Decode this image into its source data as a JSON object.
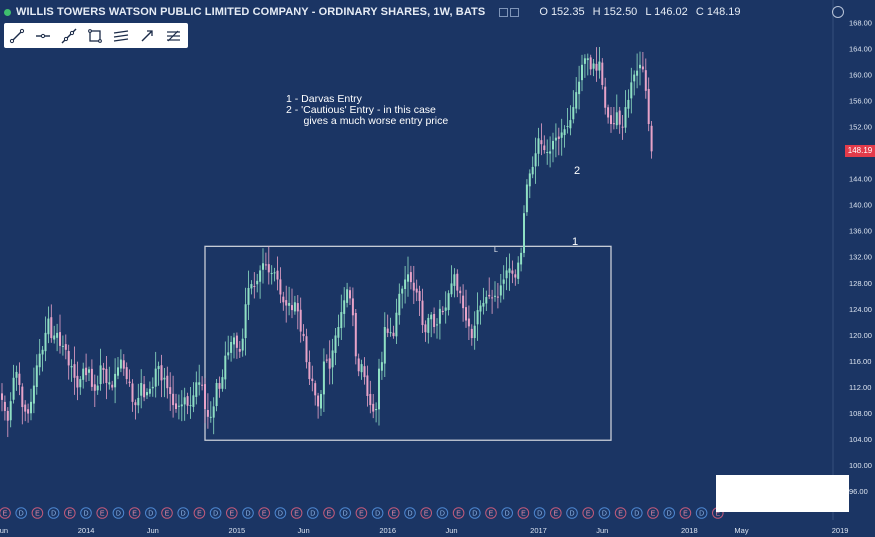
{
  "header": {
    "title": "WILLIS TOWERS WATSON PUBLIC LIMITED COMPANY - ORDINARY SHARES, 1W, BATS",
    "open": "O 152.35",
    "high": "H 152.50",
    "low": "L 146.02",
    "close": "C 148.19"
  },
  "toolbar": {
    "tools": [
      "trend-line-icon",
      "horizontal-ray-icon",
      "extended-line-icon",
      "rectangle-icon",
      "parallel-channel-icon",
      "arrow-line-icon",
      "fib-icon"
    ]
  },
  "annotation": {
    "line1": "1 - Darvas Entry",
    "line2": "2 - 'Cautious' Entry - in this case",
    "line3": "      gives a much worse entry price"
  },
  "markers": {
    "one": "1",
    "two": "2",
    "small": "L"
  },
  "colors": {
    "background": "#1b3564",
    "up": "#8fe0c4",
    "down": "#e8a3c8",
    "box": "#c9ced8",
    "last_price": "#e33b4a"
  },
  "chart_data": {
    "type": "candlestick",
    "title": "WILLIS TOWERS WATSON PUBLIC LIMITED COMPANY - ORDINARY SHARES, 1W, BATS",
    "ylim": [
      94,
      169
    ],
    "y_ticks": [
      "168.00",
      "164.00",
      "160.00",
      "156.00",
      "152.00",
      "148.00",
      "144.00",
      "140.00",
      "136.00",
      "132.00",
      "128.00",
      "124.00",
      "120.00",
      "116.00",
      "112.00",
      "108.00",
      "104.00",
      "100.00",
      "96.00"
    ],
    "last_price": "148.19",
    "x_labels": [
      {
        "label": "Jun",
        "t": 0
      },
      {
        "label": "2014",
        "t": 29
      },
      {
        "label": "Jun",
        "t": 52
      },
      {
        "label": "2015",
        "t": 81
      },
      {
        "label": "Jun",
        "t": 104
      },
      {
        "label": "2016",
        "t": 133
      },
      {
        "label": "Jun",
        "t": 155
      },
      {
        "label": "2017",
        "t": 185
      },
      {
        "label": "Jun",
        "t": 207
      },
      {
        "label": "2018",
        "t": 237
      },
      {
        "label": "May",
        "t": 255
      },
      {
        "label": "2019",
        "t": 289
      }
    ],
    "events": [
      "E",
      "D",
      "E",
      "D",
      "E",
      "D",
      "E",
      "D",
      "E",
      "D",
      "E",
      "D",
      "E",
      "D",
      "E",
      "D",
      "E",
      "D",
      "E",
      "D",
      "E",
      "D",
      "E",
      "D",
      "E",
      "D",
      "E",
      "D",
      "E",
      "D",
      "E",
      "D",
      "E",
      "D",
      "E",
      "D",
      "E",
      "D",
      "E",
      "D",
      "E",
      "D",
      "E",
      "D",
      "E"
    ],
    "darvas_box": {
      "t_start": 70,
      "t_end": 210,
      "low": 103.8,
      "high": 133.6
    },
    "closes": [
      110.0,
      108.3,
      106.8,
      109.8,
      113.4,
      114.3,
      112.3,
      108.9,
      108.2,
      107.9,
      109.7,
      112.2,
      115.3,
      117.1,
      117.7,
      120.3,
      122.5,
      119.5,
      119.9,
      120.3,
      118.3,
      118.3,
      117.7,
      115.3,
      115.2,
      113.4,
      111.9,
      113.2,
      114.8,
      113.8,
      114.7,
      112.0,
      111.4,
      112.2,
      115.3,
      114.6,
      112.6,
      112.7,
      111.9,
      114.0,
      115.0,
      116.2,
      114.8,
      113.2,
      112.6,
      109.7,
      109.2,
      110.3,
      112.6,
      110.4,
      111.2,
      111.7,
      112.0,
      114.8,
      115.2,
      113.0,
      113.4,
      111.8,
      110.9,
      109.2,
      108.6,
      109.1,
      109.3,
      110.4,
      109.1,
      109.2,
      110.7,
      112.7,
      112.7,
      112.3,
      108.6,
      107.4,
      107.4,
      109.0,
      112.6,
      111.7,
      113.5,
      116.8,
      117.3,
      118.9,
      119.6,
      118.0,
      117.4,
      119.4,
      124.7,
      127.2,
      127.8,
      127.4,
      128.3,
      129.9,
      131.0,
      130.7,
      129.6,
      129.5,
      129.6,
      128.5,
      126.2,
      125.0,
      124.5,
      124.9,
      123.8,
      125.0,
      123.6,
      120.5,
      119.8,
      115.8,
      113.2,
      112.9,
      110.7,
      109.0,
      110.9,
      115.9,
      116.1,
      114.8,
      117.6,
      119.9,
      121.2,
      123.5,
      125.3,
      127.0,
      125.6,
      123.0,
      116.7,
      114.4,
      115.5,
      113.5,
      110.6,
      109.2,
      108.2,
      108.6,
      114.8,
      115.8,
      121.2,
      120.3,
      120.4,
      119.8,
      123.4,
      126.3,
      127.1,
      128.5,
      129.3,
      128.1,
      126.8,
      126.5,
      125.2,
      121.5,
      120.4,
      122.6,
      123.1,
      121.2,
      121.6,
      124.0,
      123.5,
      124.2,
      126.4,
      127.9,
      129.3,
      126.8,
      126.4,
      124.1,
      122.2,
      121.3,
      119.5,
      121.4,
      123.8,
      124.5,
      124.9,
      125.8,
      125.9,
      125.6,
      126.0,
      125.8,
      127.6,
      128.5,
      129.9,
      130.2,
      129.4,
      128.8,
      131.1,
      132.6,
      138.7,
      143.1,
      144.8,
      145.8,
      147.9,
      150.2,
      149.3,
      148.4,
      148.1,
      148.2,
      149.8,
      150.3,
      150.1,
      151.1,
      151.6,
      152.1,
      153.0,
      155.0,
      157.3,
      158.9,
      161.5,
      162.5,
      162.5,
      160.8,
      161.7,
      160.6,
      162.0,
      158.4,
      154.9,
      153.4,
      152.4,
      152.5,
      154.2,
      152.3,
      151.9,
      155.0,
      156.1,
      158.8,
      160.0,
      160.6,
      161.5,
      160.8,
      157.5,
      152.4,
      148.2
    ]
  }
}
